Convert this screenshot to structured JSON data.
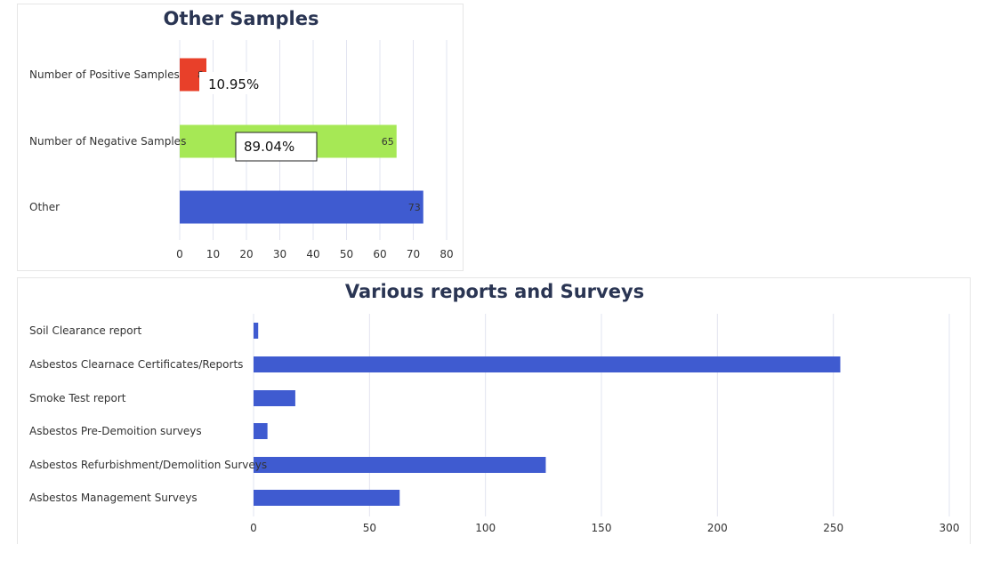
{
  "chart_data": [
    {
      "type": "bar",
      "orientation": "horizontal",
      "title": "Other Samples",
      "categories": [
        "Number of Positive Samples",
        "Number of Negative Samples",
        "Other"
      ],
      "values": [
        8,
        65,
        73
      ],
      "data_labels": [
        "8",
        "65",
        "73"
      ],
      "bar_colors": [
        "#e8402a",
        "#a6e855",
        "#3f5bd0"
      ],
      "annotations": [
        "10.95%",
        "89.04%"
      ],
      "xticks": [
        "0",
        "10",
        "20",
        "30",
        "40",
        "50",
        "60",
        "70",
        "80"
      ],
      "xlim": [
        0,
        80
      ],
      "grid": true,
      "legend": "none"
    },
    {
      "type": "bar",
      "orientation": "horizontal",
      "title": "Various reports and Surveys",
      "categories": [
        "Soil Clearance report",
        "Asbestos Clearnace Certificates/Reports",
        "Smoke Test report",
        "Asbestos Pre-Demoition surveys",
        "Asbestos Refurbishment/Demolition Surveys",
        "Asbestos Management Surveys"
      ],
      "values": [
        2,
        253,
        18,
        6,
        126,
        63
      ],
      "bar_color": "#3f5bd0",
      "xticks": [
        "0",
        "50",
        "100",
        "150",
        "200",
        "250",
        "300"
      ],
      "xlim": [
        0,
        300
      ],
      "grid": true,
      "legend": "none"
    }
  ]
}
